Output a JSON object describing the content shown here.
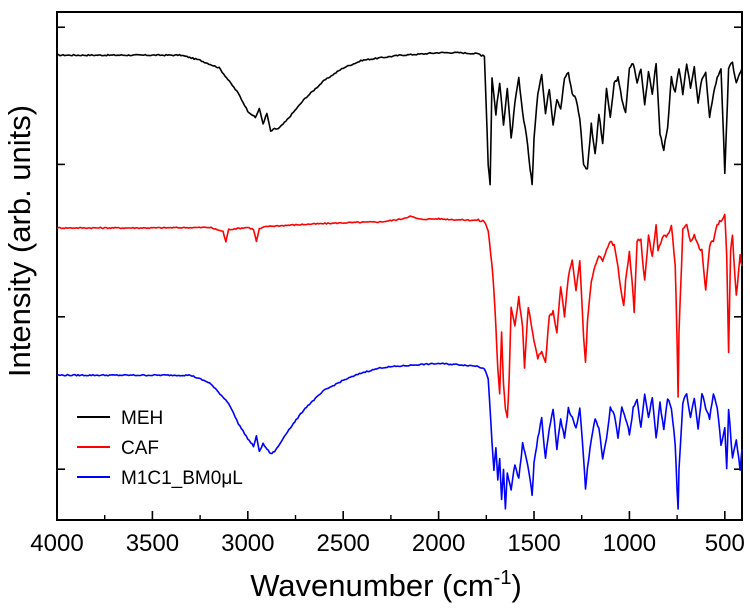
{
  "chart_data": {
    "type": "line",
    "xlabel_main": "Wavenumber (cm",
    "xlabel_sup": "-1",
    "xlabel_tail": ")",
    "ylabel": "Intensity (arb. units)",
    "xlim": [
      4000,
      410
    ],
    "x_reversed": true,
    "ylim": [
      0,
      100
    ],
    "x_ticks": [
      4000,
      3500,
      3000,
      2500,
      2000,
      1500,
      1000,
      500
    ],
    "x_tick_labels": [
      "4000",
      "3500",
      "3000",
      "2500",
      "2000",
      "1500",
      "1000",
      "500"
    ],
    "y_ticks": [
      10,
      40,
      70,
      97
    ],
    "legend": {
      "position": "bottom-left",
      "entries": [
        {
          "label": "MEH",
          "color": "#000000"
        },
        {
          "label": "CAF",
          "color": "#ff0000"
        },
        {
          "label": "M1C1_BM0μL",
          "color": "#0000ff"
        }
      ]
    },
    "series": [
      {
        "name": "MEH",
        "color": "#000000",
        "x": [
          4000,
          3600,
          3350,
          3250,
          3150,
          3050,
          3000,
          2960,
          2940,
          2920,
          2900,
          2880,
          2860,
          2840,
          2800,
          2700,
          2600,
          2500,
          2400,
          2300,
          2200,
          2100,
          2000,
          1900,
          1800,
          1760,
          1740,
          1730,
          1720,
          1700,
          1680,
          1660,
          1640,
          1620,
          1600,
          1580,
          1560,
          1540,
          1520,
          1510,
          1500,
          1480,
          1460,
          1440,
          1420,
          1400,
          1380,
          1360,
          1340,
          1320,
          1300,
          1280,
          1260,
          1240,
          1220,
          1200,
          1180,
          1160,
          1140,
          1120,
          1100,
          1080,
          1060,
          1040,
          1020,
          1000,
          980,
          960,
          940,
          920,
          900,
          880,
          860,
          840,
          820,
          800,
          780,
          760,
          740,
          720,
          700,
          680,
          660,
          640,
          620,
          600,
          580,
          560,
          540,
          520,
          500,
          480,
          460,
          440,
          420,
          410
        ],
        "y": [
          91.5,
          91.5,
          91.5,
          90.5,
          89.0,
          84.0,
          80.5,
          79.2,
          81.0,
          78.0,
          80.0,
          76.5,
          77.0,
          77.0,
          78.5,
          83.0,
          86.5,
          89.0,
          90.5,
          91.0,
          91.5,
          91.7,
          92.0,
          92.0,
          91.8,
          91.5,
          70.0,
          66.0,
          87.0,
          80.0,
          86.0,
          78.0,
          85.0,
          75.0,
          82.0,
          87.0,
          80.0,
          76.0,
          69.0,
          66.0,
          75.0,
          84.0,
          88.0,
          80.0,
          85.0,
          78.0,
          83.0,
          81.0,
          87.0,
          88.0,
          84.0,
          83.0,
          79.0,
          70.0,
          69.0,
          78.0,
          72.0,
          80.0,
          74.0,
          85.0,
          79.0,
          86.0,
          87.0,
          83.0,
          80.0,
          89.0,
          90.0,
          86.0,
          89.0,
          82.0,
          88.0,
          84.0,
          90.0,
          76.0,
          73.0,
          77.0,
          87.0,
          84.0,
          89.0,
          84.0,
          90.0,
          85.0,
          89.0,
          82.0,
          87.0,
          88.0,
          79.0,
          84.0,
          87.0,
          89.0,
          68.0,
          89.0,
          90.0,
          86.0,
          88.0,
          89.0
        ]
      },
      {
        "name": "CAF",
        "color": "#ff0000",
        "x": [
          4000,
          3500,
          3200,
          3130,
          3115,
          3100,
          3000,
          2970,
          2955,
          2940,
          2900,
          2700,
          2500,
          2300,
          2200,
          2150,
          2100,
          2000,
          1900,
          1800,
          1760,
          1740,
          1720,
          1710,
          1700,
          1690,
          1680,
          1670,
          1660,
          1650,
          1640,
          1630,
          1620,
          1600,
          1580,
          1560,
          1550,
          1540,
          1530,
          1500,
          1480,
          1460,
          1440,
          1420,
          1400,
          1380,
          1360,
          1340,
          1320,
          1300,
          1280,
          1260,
          1240,
          1230,
          1220,
          1200,
          1180,
          1160,
          1140,
          1120,
          1100,
          1080,
          1060,
          1040,
          1030,
          1020,
          1000,
          980,
          975,
          960,
          940,
          920,
          900,
          880,
          860,
          850,
          820,
          800,
          780,
          760,
          750,
          745,
          740,
          720,
          700,
          680,
          660,
          640,
          620,
          610,
          600,
          580,
          560,
          540,
          520,
          500,
          490,
          480,
          470,
          460,
          440,
          420,
          410
        ],
        "y": [
          57.5,
          57.5,
          57.6,
          56.8,
          54.8,
          57.2,
          57.6,
          57.2,
          54.8,
          57.3,
          57.8,
          58.2,
          58.5,
          58.7,
          59.2,
          59.8,
          59.2,
          59.3,
          59.1,
          59.0,
          58.8,
          57.0,
          50.0,
          45.0,
          38.0,
          30.0,
          25.0,
          37.0,
          27.0,
          22.0,
          20.0,
          28.0,
          42.0,
          38.0,
          44.0,
          38.0,
          30.0,
          36.0,
          42.0,
          35.0,
          32.0,
          33.0,
          31.0,
          40.0,
          41.0,
          37.0,
          46.0,
          40.0,
          48.0,
          51.0,
          45.0,
          51.0,
          36.0,
          31.0,
          39.0,
          47.0,
          50.0,
          52.0,
          51.0,
          53.0,
          55.0,
          54.0,
          50.0,
          44.0,
          42.0,
          47.0,
          53.0,
          44.0,
          41.0,
          55.0,
          55.0,
          47.0,
          56.0,
          52.0,
          58.0,
          53.0,
          56.0,
          56.0,
          58.0,
          50.0,
          35.0,
          24.0,
          37.0,
          57.0,
          58.0,
          55.0,
          56.0,
          54.0,
          53.0,
          49.0,
          45.0,
          54.0,
          55.0,
          58.0,
          59.0,
          60.0,
          52.0,
          33.0,
          53.0,
          56.0,
          44.0,
          52.0,
          50.0
        ]
      },
      {
        "name": "M1C1_BM0μL",
        "color": "#0000ff",
        "x": [
          4000,
          3600,
          3300,
          3200,
          3100,
          3050,
          3000,
          2970,
          2955,
          2940,
          2920,
          2900,
          2880,
          2860,
          2840,
          2800,
          2700,
          2600,
          2500,
          2400,
          2300,
          2200,
          2100,
          2000,
          1900,
          1800,
          1760,
          1740,
          1720,
          1710,
          1700,
          1690,
          1680,
          1670,
          1660,
          1650,
          1640,
          1620,
          1600,
          1580,
          1560,
          1540,
          1520,
          1510,
          1500,
          1480,
          1460,
          1440,
          1420,
          1400,
          1380,
          1360,
          1340,
          1320,
          1300,
          1280,
          1260,
          1240,
          1230,
          1220,
          1200,
          1180,
          1160,
          1140,
          1120,
          1100,
          1080,
          1060,
          1040,
          1020,
          1000,
          980,
          960,
          940,
          920,
          900,
          880,
          860,
          840,
          820,
          800,
          780,
          760,
          750,
          745,
          740,
          720,
          700,
          680,
          660,
          640,
          620,
          600,
          580,
          560,
          540,
          520,
          500,
          490,
          480,
          460,
          440,
          420,
          410
        ],
        "y": [
          28.5,
          28.5,
          28.5,
          27.0,
          23.0,
          19.0,
          16.0,
          14.5,
          16.5,
          13.5,
          15.0,
          14.0,
          13.0,
          13.5,
          14.5,
          17.0,
          22.0,
          25.5,
          27.5,
          29.0,
          30.0,
          30.3,
          30.6,
          30.8,
          30.6,
          30.3,
          30.0,
          28.0,
          15.0,
          10.0,
          14.0,
          8.0,
          12.0,
          4.0,
          10.0,
          2.5,
          9.0,
          6.0,
          11.0,
          8.0,
          15.0,
          12.0,
          8.0,
          5.0,
          11.0,
          16.0,
          20.0,
          12.0,
          18.0,
          22.0,
          14.0,
          20.0,
          16.0,
          22.0,
          20.0,
          18.0,
          22.0,
          12.0,
          6.0,
          10.0,
          16.0,
          20.0,
          18.0,
          12.0,
          16.0,
          22.0,
          21.0,
          16.0,
          22.0,
          20.0,
          17.0,
          22.0,
          24.0,
          18.0,
          25.0,
          20.0,
          24.0,
          16.0,
          23.0,
          18.0,
          24.0,
          22.0,
          15.0,
          6.0,
          2.0,
          10.0,
          23.0,
          25.0,
          20.0,
          24.0,
          18.0,
          25.0,
          22.0,
          20.0,
          25.0,
          22.0,
          15.0,
          18.0,
          10.0,
          22.0,
          12.0,
          16.0,
          10.0,
          14.0
        ]
      }
    ]
  }
}
